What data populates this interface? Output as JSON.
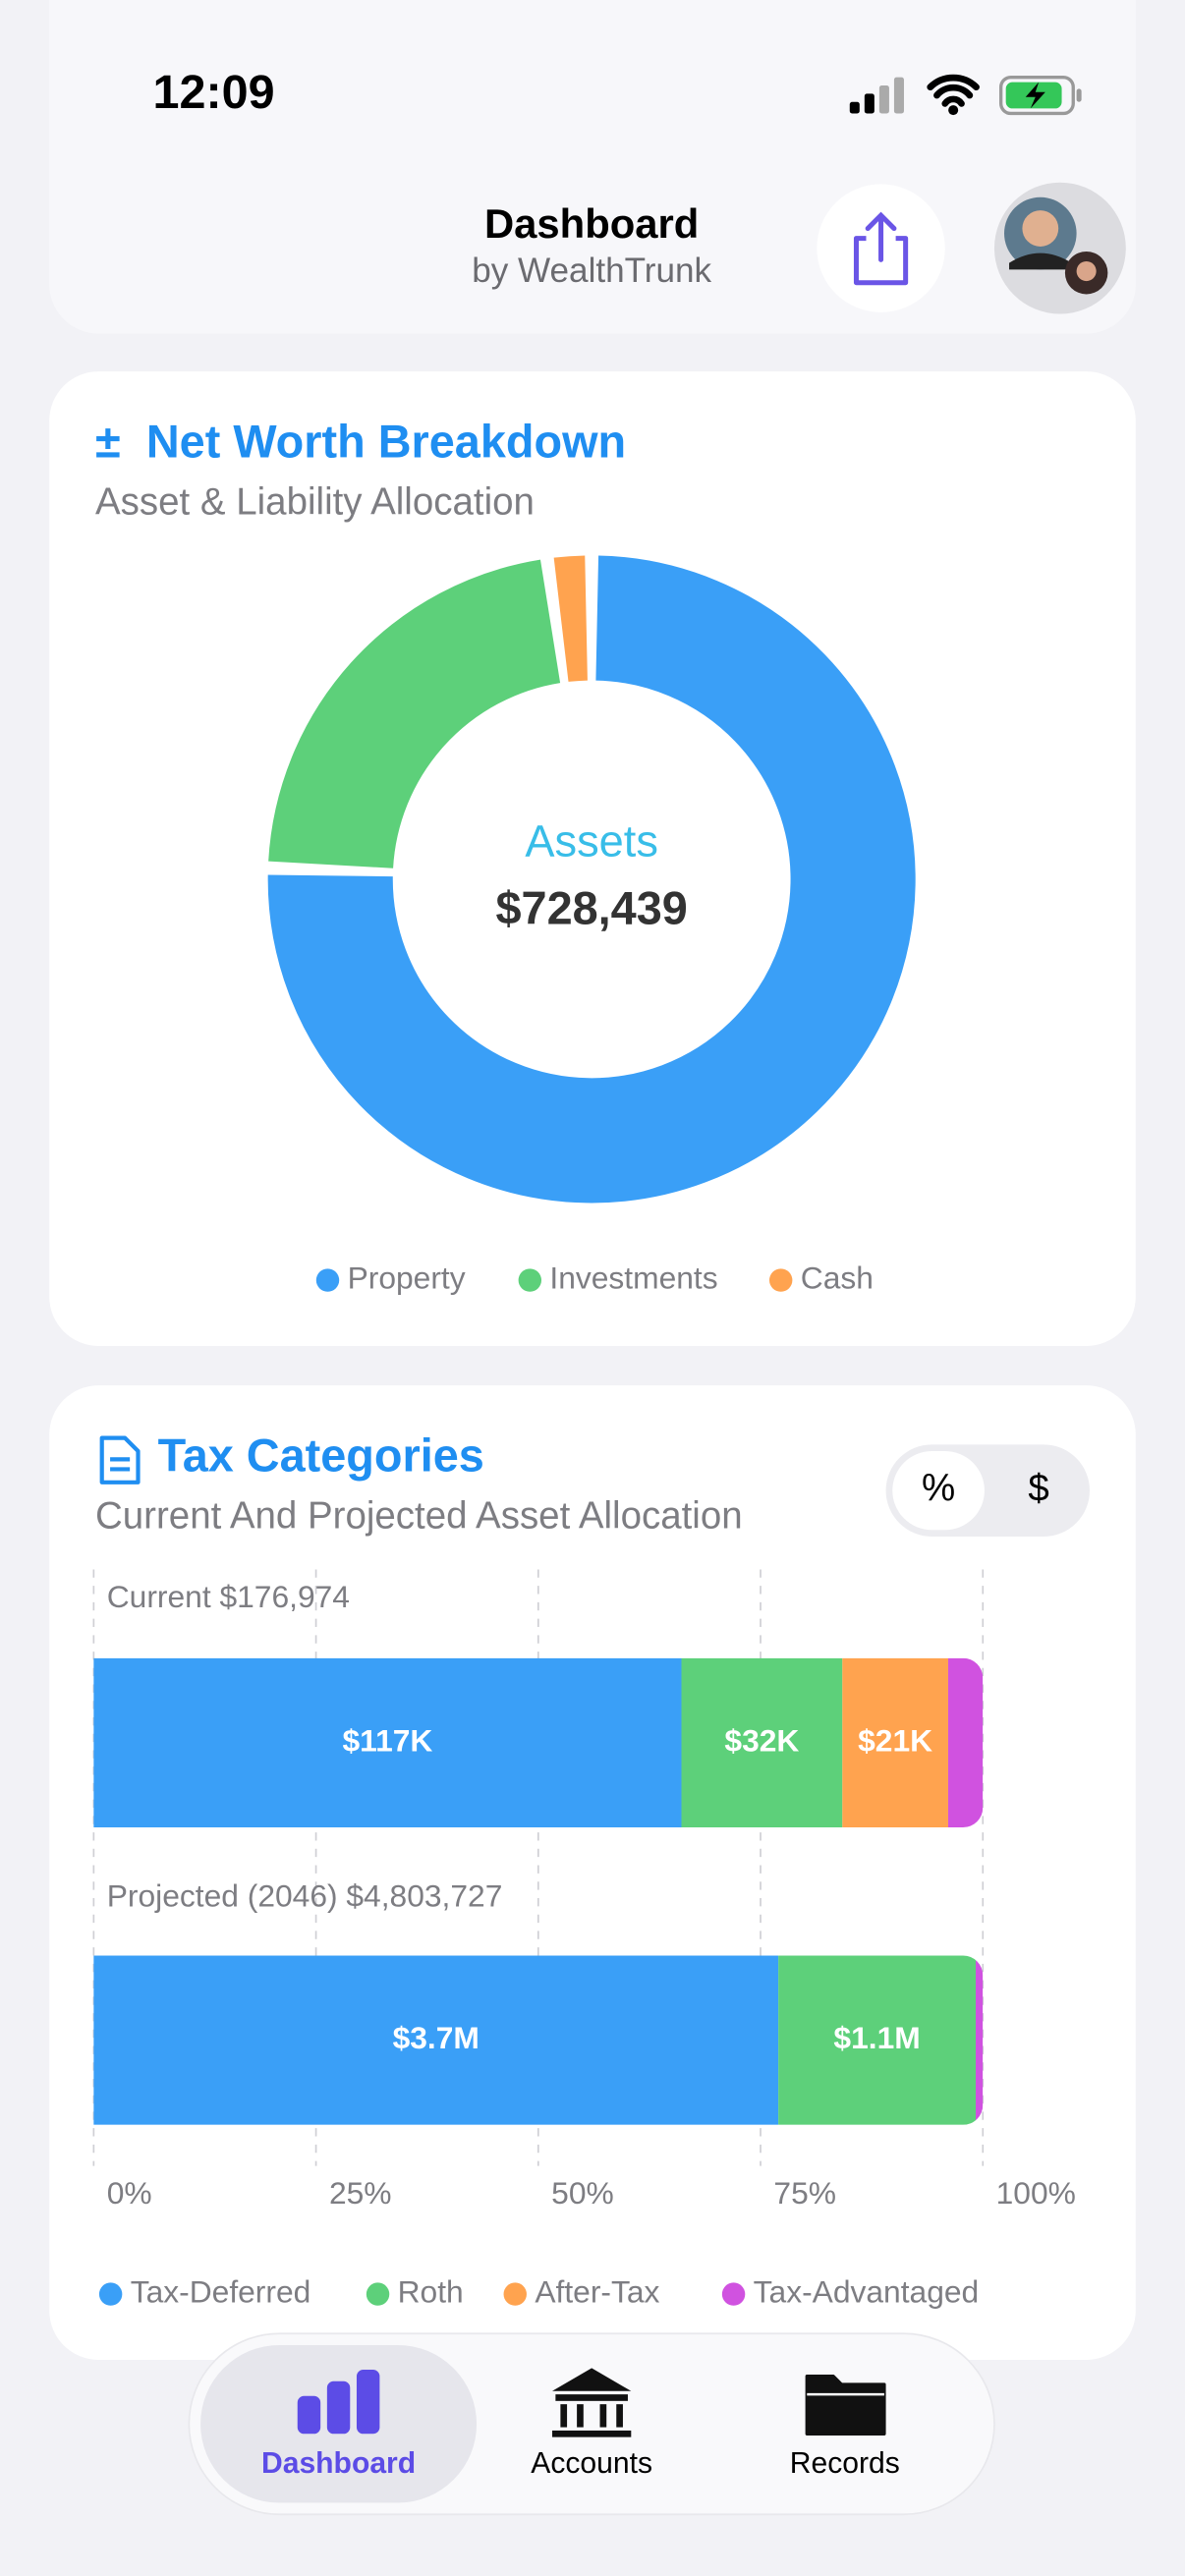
{
  "status_bar": {
    "time": "12:09"
  },
  "header": {
    "title": "Dashboard",
    "subtitle": "by WealthTrunk"
  },
  "chart_data": [
    {
      "type": "pie",
      "icon": "±",
      "title": "Net Worth Breakdown",
      "subtitle": "Asset & Liability Allocation",
      "center_label": "Assets",
      "center_value": "$728,439",
      "categories": [
        "Property",
        "Investments",
        "Cash"
      ],
      "values": [
        550000,
        162000,
        16000
      ],
      "colors": [
        "#3a9ff7",
        "#5dd07a",
        "#ffa34f"
      ],
      "legend": "bottom"
    },
    {
      "type": "bar",
      "orientation": "horizontal",
      "stacked": true,
      "title": "Tax Categories",
      "subtitle": "Current And Projected Asset Allocation",
      "toggle": [
        "%",
        "$"
      ],
      "categories": [
        "Current $176,974",
        "Projected (2046) $4,803,727"
      ],
      "series": [
        {
          "name": "Tax-Deferred",
          "color": "#3a9ff7",
          "values": [
            66.1,
            77.0
          ],
          "amount_labels": [
            "$117K",
            "$3.7M"
          ]
        },
        {
          "name": "Roth",
          "color": "#5dd07a",
          "values": [
            18.1,
            22.2
          ],
          "amount_labels": [
            "$32K",
            "$1.1M"
          ]
        },
        {
          "name": "After-Tax",
          "color": "#ffa34f",
          "values": [
            11.9,
            0
          ],
          "amount_labels": [
            "$21K",
            null
          ]
        },
        {
          "name": "Tax-Advantaged",
          "color": "#d052e0",
          "values": [
            3.9,
            0.8
          ],
          "amount_labels": [
            null,
            null
          ]
        }
      ],
      "xlim": [
        0,
        100
      ],
      "xticks": [
        {
          "value": 0,
          "label": "0%"
        },
        {
          "value": 25,
          "label": "25%"
        },
        {
          "value": 50,
          "label": "50%"
        },
        {
          "value": 75,
          "label": "75%"
        },
        {
          "value": 100,
          "label": "100%"
        }
      ],
      "grid": true,
      "legend": "bottom"
    }
  ],
  "nav": {
    "tabs": [
      "Dashboard",
      "Accounts",
      "Records"
    ]
  }
}
